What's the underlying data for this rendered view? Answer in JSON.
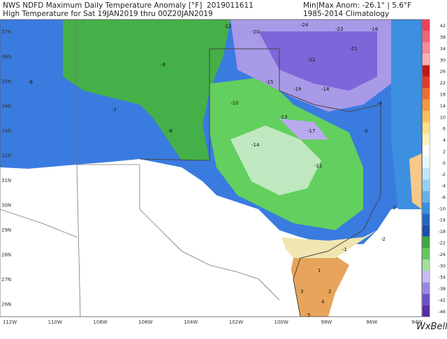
{
  "header": {
    "title": "NWS NDFD Maximum Daily Temperature Anomaly [°F]",
    "run": "2019011611",
    "subtitle": "High Temperature for Sat 19JAN2019 thru 00Z20JAN2019",
    "range": "Min|Max Anom: -26.1° | 5.6°F",
    "climatology": "1985-2014 Climatology"
  },
  "latitudes": [
    "37N",
    "36N",
    "35N",
    "34N",
    "33N",
    "32N",
    "31N",
    "30N",
    "29N",
    "28N",
    "27N",
    "26N"
  ],
  "longitudes": [
    "112W",
    "110W",
    "108W",
    "106W",
    "104W",
    "102W",
    "100W",
    "98W",
    "96W",
    "94W"
  ],
  "colorbar": [
    "42",
    "38",
    "34",
    "30",
    "26",
    "22",
    "18",
    "14",
    "10",
    "6",
    "4",
    "2",
    "0",
    "-2",
    "-4",
    "-6",
    "-10",
    "-14",
    "-18",
    "-22",
    "-26",
    "-30",
    "-34",
    "-38",
    "-42",
    "-46"
  ],
  "map_labels": [
    "-12",
    "-20",
    "-24",
    "-23",
    "-16",
    "-22",
    "-21",
    "-19",
    "-18",
    "-15",
    "-13",
    "-17",
    "-9",
    "-7",
    "-8",
    "-6",
    "-10",
    "-11",
    "-14",
    "-5",
    "-4",
    "-3",
    "-2",
    "-1",
    "1",
    "2",
    "3",
    "4",
    "5"
  ],
  "logo": "WxBell"
}
